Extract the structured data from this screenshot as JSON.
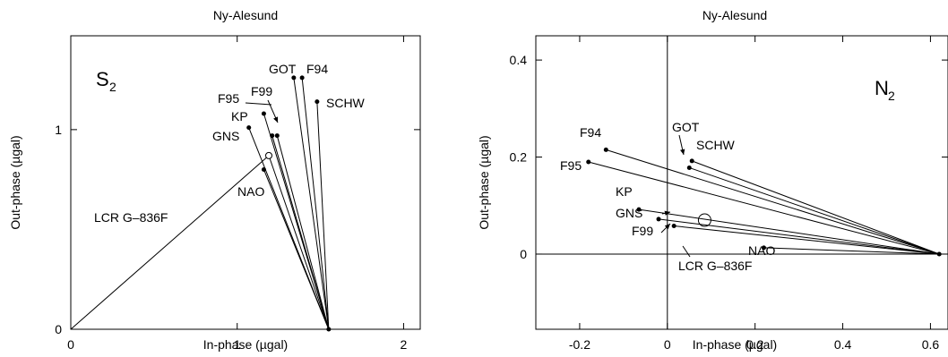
{
  "chart_data": [
    {
      "type": "scatter",
      "title": "Ny-Alesund",
      "xlabel": "In-phase (µgal)",
      "ylabel": "Out-phase (µgal)",
      "badge": {
        "main": "S",
        "sub": "2"
      },
      "xlim": [
        0,
        2.1
      ],
      "ylim": [
        0,
        1.47
      ],
      "xticks": [
        {
          "v": 0,
          "label": "0"
        },
        {
          "v": 1,
          "label": "1"
        },
        {
          "v": 2,
          "label": "2"
        }
      ],
      "yticks": [
        {
          "v": 0,
          "label": "0"
        },
        {
          "v": 1,
          "label": "1"
        }
      ],
      "convergence_point": {
        "x": 1.55,
        "y": 0.0
      },
      "reference": {
        "name": "LCR G–836F",
        "x": 1.19,
        "y": 0.87
      },
      "models": [
        {
          "name": "GOT",
          "x": 1.34,
          "y": 1.26
        },
        {
          "name": "F94",
          "x": 1.39,
          "y": 1.26
        },
        {
          "name": "SCHW",
          "x": 1.48,
          "y": 1.14
        },
        {
          "name": "F95",
          "x": 1.16,
          "y": 1.08
        },
        {
          "name": "F99",
          "x": 1.24,
          "y": 0.97
        },
        {
          "name": "KP",
          "x": 1.21,
          "y": 0.97
        },
        {
          "name": "GNS",
          "x": 1.07,
          "y": 1.01
        },
        {
          "name": "NAO",
          "x": 1.16,
          "y": 0.8
        }
      ]
    },
    {
      "type": "scatter",
      "title": "Ny-Alesund",
      "xlabel": "In-phase (µgal)",
      "ylabel": "Out-phase (µgal)",
      "badge": {
        "main": "N",
        "sub": "2"
      },
      "xlim": [
        -0.3,
        0.64
      ],
      "ylim": [
        -0.155,
        0.45
      ],
      "xticks": [
        {
          "v": -0.2,
          "label": "-0.2"
        },
        {
          "v": 0,
          "label": "0"
        },
        {
          "v": 0.2,
          "label": "0.2"
        },
        {
          "v": 0.4,
          "label": "0.4"
        },
        {
          "v": 0.6,
          "label": "0.6"
        }
      ],
      "yticks": [
        {
          "v": 0,
          "label": "0"
        },
        {
          "v": 0.2,
          "label": "0.2"
        },
        {
          "v": 0.4,
          "label": "0.4"
        }
      ],
      "convergence_point": {
        "x": 0.62,
        "y": 0.0
      },
      "reference": {
        "name": "LCR G–836F",
        "x": 0.085,
        "y": 0.07
      },
      "models": [
        {
          "name": "F94",
          "x": -0.14,
          "y": 0.215
        },
        {
          "name": "F95",
          "x": -0.18,
          "y": 0.19
        },
        {
          "name": "GOT",
          "x": 0.05,
          "y": 0.178
        },
        {
          "name": "SCHW",
          "x": 0.056,
          "y": 0.192
        },
        {
          "name": "KP",
          "x": -0.065,
          "y": 0.092
        },
        {
          "name": "GNS",
          "x": -0.02,
          "y": 0.072
        },
        {
          "name": "F99",
          "x": 0.015,
          "y": 0.058
        },
        {
          "name": "NAO",
          "x": 0.22,
          "y": 0.013
        }
      ]
    }
  ]
}
